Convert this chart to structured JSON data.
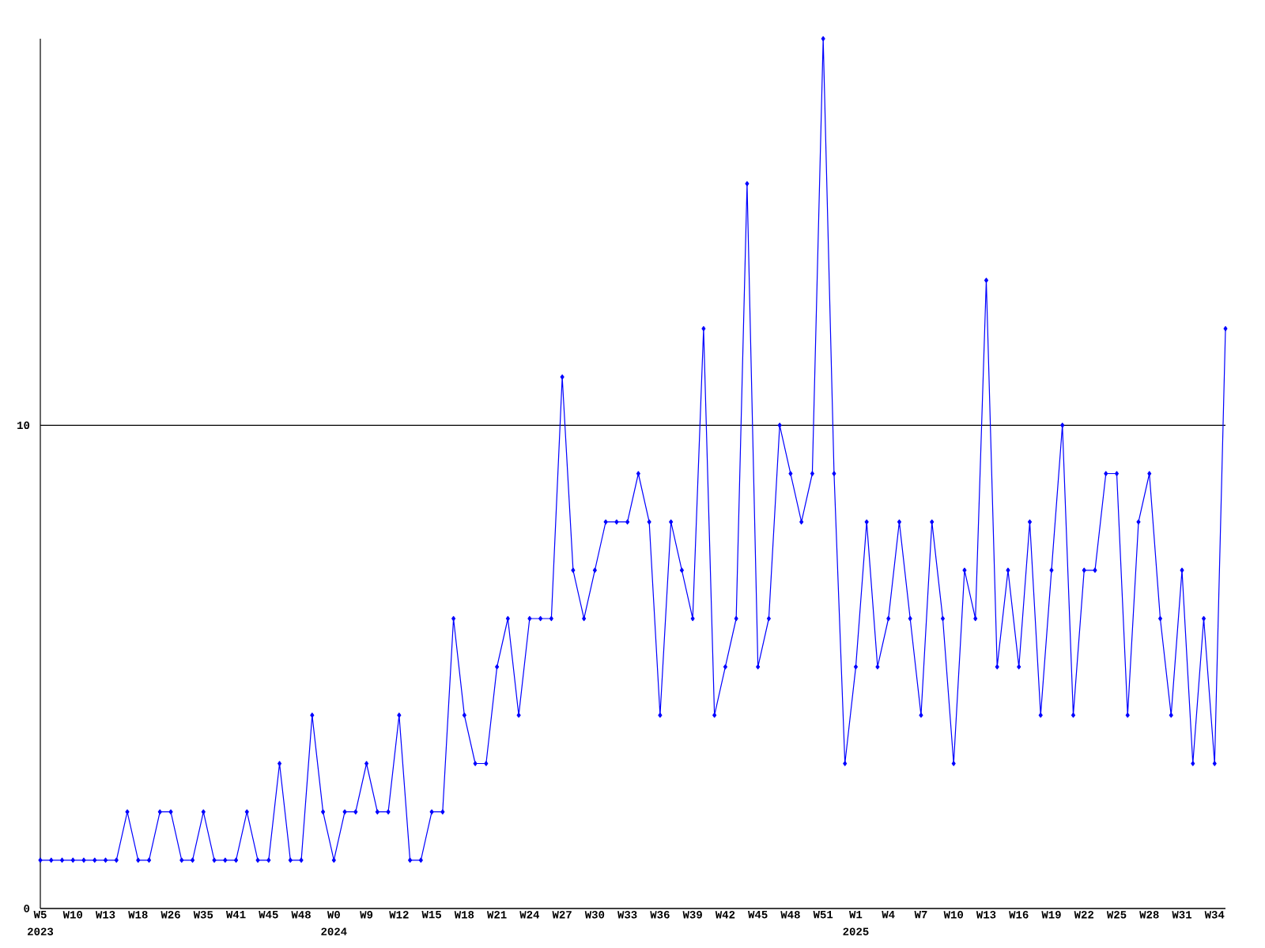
{
  "chart_data": {
    "type": "line",
    "categories": [
      "W5",
      null,
      null,
      "W10",
      null,
      null,
      "W13",
      null,
      null,
      "W18",
      null,
      null,
      "W26",
      null,
      null,
      "W35",
      null,
      null,
      "W41",
      null,
      null,
      "W45",
      null,
      null,
      "W48",
      null,
      null,
      "W0",
      null,
      null,
      "W9",
      null,
      null,
      "W12",
      null,
      null,
      "W15",
      null,
      null,
      "W18",
      null,
      null,
      "W21",
      null,
      null,
      "W24",
      null,
      null,
      "W27",
      null,
      null,
      "W30",
      null,
      null,
      "W33",
      null,
      null,
      "W36",
      null,
      null,
      "W39",
      null,
      null,
      "W42",
      null,
      null,
      "W45",
      null,
      null,
      "W48",
      null,
      null,
      "W51",
      null,
      null,
      "W1",
      null,
      null,
      "W4",
      null,
      null,
      "W7",
      null,
      null,
      "W10",
      null,
      null,
      "W13",
      null,
      null,
      "W16",
      null,
      null,
      "W19",
      null,
      null,
      "W22",
      null,
      null,
      "W25",
      null,
      null,
      "W28",
      null,
      null,
      "W31",
      null,
      null,
      "W34",
      null
    ],
    "series": [
      {
        "color": "#0000ff",
        "values": [
          1,
          1,
          1,
          1,
          1,
          1,
          1,
          1,
          2,
          1,
          1,
          2,
          2,
          1,
          1,
          2,
          1,
          1,
          1,
          2,
          1,
          1,
          3,
          1,
          1,
          4,
          2,
          1,
          2,
          2,
          3,
          2,
          2,
          4,
          1,
          1,
          2,
          2,
          6,
          4,
          3,
          3,
          5,
          6,
          4,
          6,
          6,
          6,
          11,
          7,
          6,
          7,
          8,
          8,
          8,
          9,
          8,
          4,
          8,
          7,
          6,
          12,
          4,
          5,
          6,
          15,
          5,
          6,
          10,
          9,
          8,
          9,
          18,
          9,
          3,
          5,
          8,
          5,
          6,
          8,
          6,
          4,
          8,
          6,
          3,
          7,
          6,
          13,
          5,
          7,
          5,
          8,
          4,
          7,
          10,
          4,
          7,
          7,
          9,
          9,
          4,
          8,
          9,
          6,
          4,
          7,
          3,
          6,
          3,
          12
        ]
      }
    ],
    "ylim": [
      0,
      18
    ],
    "yticks": [
      0,
      10
    ],
    "grid": "y",
    "marker": "diamond",
    "line_style": "solid",
    "annotations": [
      "2023",
      "2024",
      "2025"
    ]
  }
}
